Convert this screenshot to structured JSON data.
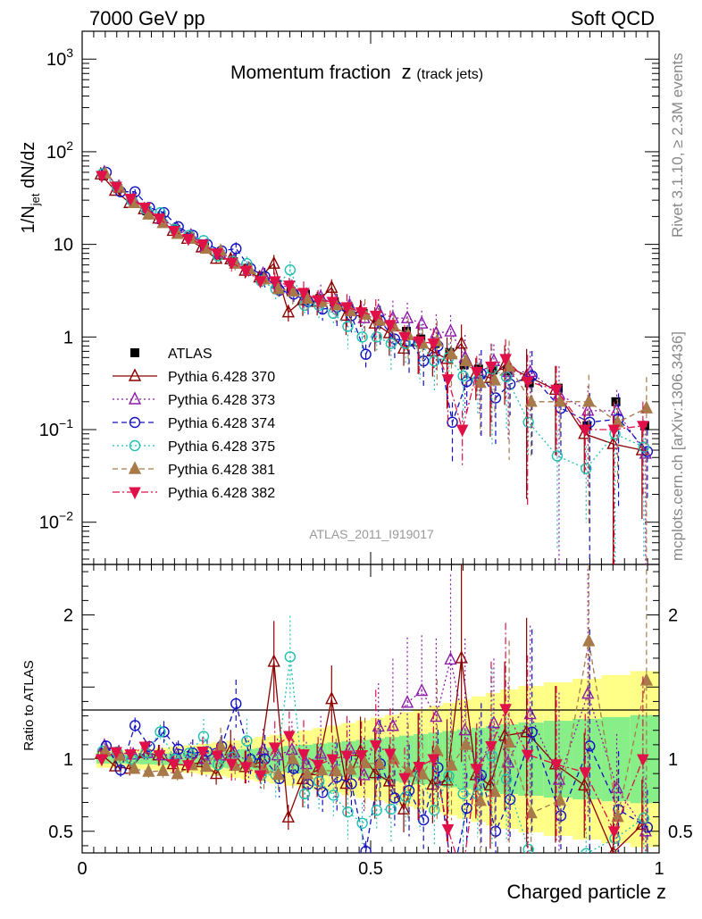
{
  "header": {
    "left": "7000 GeV pp",
    "right": "Soft QCD"
  },
  "side": {
    "rivet": "Rivet 3.1.10, ≥ 2.3M events",
    "mcplots": "mcplots.cern.ch [arXiv:1306.3436]"
  },
  "chart_data": {
    "type": "scatter",
    "title": "Momentum fraction",
    "title_var": "z",
    "title_sub": "(track jets)",
    "analysis_label": "ATLAS_2011_I919017",
    "xlabel": "Charged particle z",
    "ylabel": "1/N_jet dN/dz",
    "xlim": [
      0,
      1
    ],
    "ylim": [
      0.0035,
      2000
    ],
    "yscale": "log",
    "x_ticks": [
      "0",
      "0.5",
      "1"
    ],
    "y_ticks": [
      "10^-2",
      "10^-1",
      "1",
      "10",
      "10^2",
      "10^3"
    ],
    "ratio": {
      "ylabel": "Ratio to ATLAS",
      "ylim": [
        0.35,
        2.35
      ],
      "ticks": [
        "0.5",
        "1",
        "2"
      ]
    },
    "legend_placement": "center-left",
    "x": [
      0.037,
      0.062,
      0.087,
      0.112,
      0.137,
      0.162,
      0.187,
      0.212,
      0.237,
      0.262,
      0.287,
      0.312,
      0.337,
      0.362,
      0.387,
      0.412,
      0.437,
      0.462,
      0.487,
      0.512,
      0.537,
      0.562,
      0.587,
      0.612,
      0.637,
      0.662,
      0.687,
      0.712,
      0.737,
      0.775,
      0.825,
      0.875,
      0.925,
      0.975
    ],
    "series": [
      {
        "name": "ATLAS",
        "color": "#000000",
        "marker": "square",
        "line": "none",
        "values": [
          55,
          40,
          30,
          23,
          18.5,
          14.5,
          12,
          9.5,
          7.8,
          6.5,
          5.5,
          4.5,
          3.7,
          3.1,
          2.9,
          2.6,
          2.4,
          2.05,
          1.8,
          1.55,
          1.3,
          1.15,
          0.95,
          0.85,
          0.68,
          0.5,
          0.45,
          0.44,
          0.43,
          0.32,
          0.28,
          0.11,
          0.2,
          0.11
        ]
      },
      {
        "name": "Pythia 6.428 370",
        "color": "#8b0000",
        "marker": "triangle-up-open",
        "line": "solid",
        "values": [
          57,
          38,
          28,
          24,
          19,
          14,
          11.5,
          9.3,
          7.0,
          6.9,
          5.2,
          4.4,
          6.2,
          1.85,
          2.5,
          2.4,
          3.4,
          1.7,
          1.9,
          1.4,
          1.1,
          0.75,
          0.9,
          0.7,
          0.58,
          0.85,
          0.4,
          0.36,
          0.5,
          0.38,
          0.27,
          0.09,
          0.07,
          0.06
        ]
      },
      {
        "name": "Pythia 6.428 373",
        "color": "#8c1aa8",
        "marker": "triangle-up-open",
        "line": "dotted",
        "values": [
          60,
          42,
          31,
          24,
          19,
          15,
          12.5,
          9.5,
          8.0,
          6.8,
          5.4,
          4.8,
          3.8,
          3.3,
          2.8,
          2.7,
          2.2,
          2.2,
          1.6,
          1.9,
          1.6,
          1.6,
          1.4,
          1.1,
          1.15,
          0.6,
          0.4,
          0.55,
          0.42,
          0.42,
          0.24,
          0.16,
          0.16,
          0.055
        ]
      },
      {
        "name": "Pythia 6.428 374",
        "color": "#1010c0",
        "marker": "circle-open",
        "line": "dashed",
        "values": [
          60,
          37,
          37,
          25,
          22,
          15.5,
          12.5,
          10,
          8.5,
          9.0,
          5.5,
          4.5,
          3.2,
          2.9,
          2.4,
          2.0,
          2.1,
          1.7,
          0.65,
          1.5,
          0.95,
          0.9,
          0.55,
          0.8,
          0.12,
          0.33,
          0.4,
          0.22,
          0.31,
          0.38,
          0.17,
          0.12,
          0.13,
          0.058
        ]
      },
      {
        "name": "Pythia 6.428 375",
        "color": "#20c0b0",
        "marker": "circle-open",
        "line": "dotted",
        "values": [
          58,
          42,
          30,
          24,
          22,
          14.5,
          12.5,
          11.0,
          7.5,
          6.6,
          6.2,
          4.0,
          3.3,
          5.3,
          2.2,
          2.2,
          1.8,
          1.3,
          1.0,
          1.0,
          0.85,
          0.85,
          0.85,
          0.55,
          0.6,
          0.38,
          0.34,
          0.45,
          0.37,
          0.12,
          0.052,
          0.038,
          0.09,
          0.065
        ]
      },
      {
        "name": "Pythia 6.428 381",
        "color": "#a87a4a",
        "marker": "triangle-up-filled",
        "line": "dashed",
        "values": [
          58,
          41,
          28,
          21,
          17,
          13,
          11.5,
          9.0,
          8.5,
          6.2,
          5.4,
          4.2,
          3.3,
          3.1,
          2.6,
          2.4,
          2.2,
          1.9,
          1.75,
          1.5,
          1.3,
          1.05,
          0.85,
          0.9,
          0.65,
          0.55,
          0.32,
          0.34,
          0.48,
          0.2,
          0.2,
          0.2,
          0.12,
          0.17
        ]
      },
      {
        "name": "Pythia 6.428 382",
        "color": "#e01048",
        "marker": "triangle-down-filled",
        "line": "dashdot",
        "values": [
          55,
          42,
          31,
          25,
          19,
          14,
          11.5,
          10,
          8.0,
          6.3,
          5.2,
          4.0,
          4.0,
          3.6,
          3.0,
          2.5,
          2.4,
          2.1,
          1.85,
          1.7,
          1.35,
          1.0,
          0.9,
          0.85,
          0.35,
          0.1,
          0.42,
          0.48,
          0.58,
          0.33,
          0.27,
          0.1,
          0.1,
          0.11
        ]
      }
    ]
  }
}
